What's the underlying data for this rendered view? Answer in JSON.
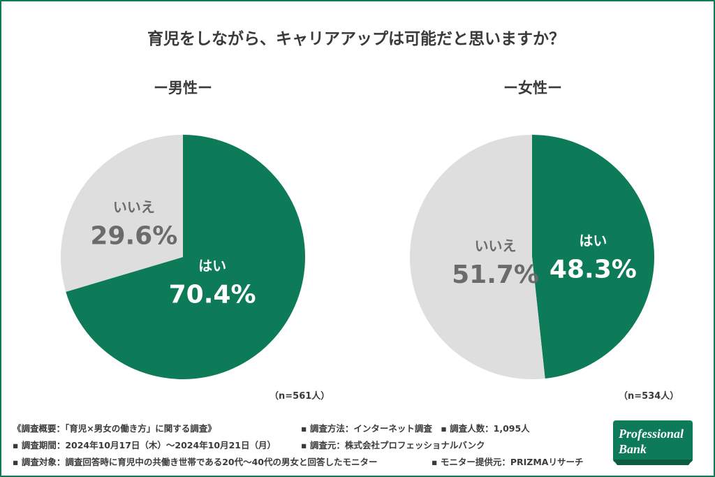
{
  "title": "育児をしながら、キャリアアップは可能だと思いますか？",
  "chart_data": [
    {
      "type": "pie",
      "group": "ー男性ー",
      "n_note": "（n=561人）",
      "slices": [
        {
          "label": "はい",
          "value": 70.4,
          "value_text": "70.4%",
          "color": "#0d7b58",
          "text_color": "#ffffff"
        },
        {
          "label": "いいえ",
          "value": 29.6,
          "value_text": "29.6%",
          "color": "#dedede",
          "text_color": "#6b6b6b"
        }
      ]
    },
    {
      "type": "pie",
      "group": "ー女性ー",
      "n_note": "（n=534人）",
      "slices": [
        {
          "label": "はい",
          "value": 48.3,
          "value_text": "48.3%",
          "color": "#0d7b58",
          "text_color": "#ffffff"
        },
        {
          "label": "いいえ",
          "value": 51.7,
          "value_text": "51.7%",
          "color": "#dedede",
          "text_color": "#6b6b6b"
        }
      ]
    }
  ],
  "footer": {
    "line1_left": "《調査概要：「育児×男女の働き方」に関する調査》",
    "line1_right": "▪ 調査方法：インターネット調査　▪ 調査人数：1,095人",
    "line2_left": "▪ 調査期間：2024年10月17日（木）～2024年10月21日（月）",
    "line2_right": "▪ 調査元：株式会社プロフェッショナルバンク",
    "line3_left": "▪ 調査対象：調査回答時に育児中の共働き世帯である20代～40代の男女と回答したモニター",
    "line3_right": "▪ モニター提供元：PRIZMAリサーチ"
  },
  "logo": {
    "line1": "Professional",
    "line2": "Bank",
    "color": "#0d7b58"
  }
}
